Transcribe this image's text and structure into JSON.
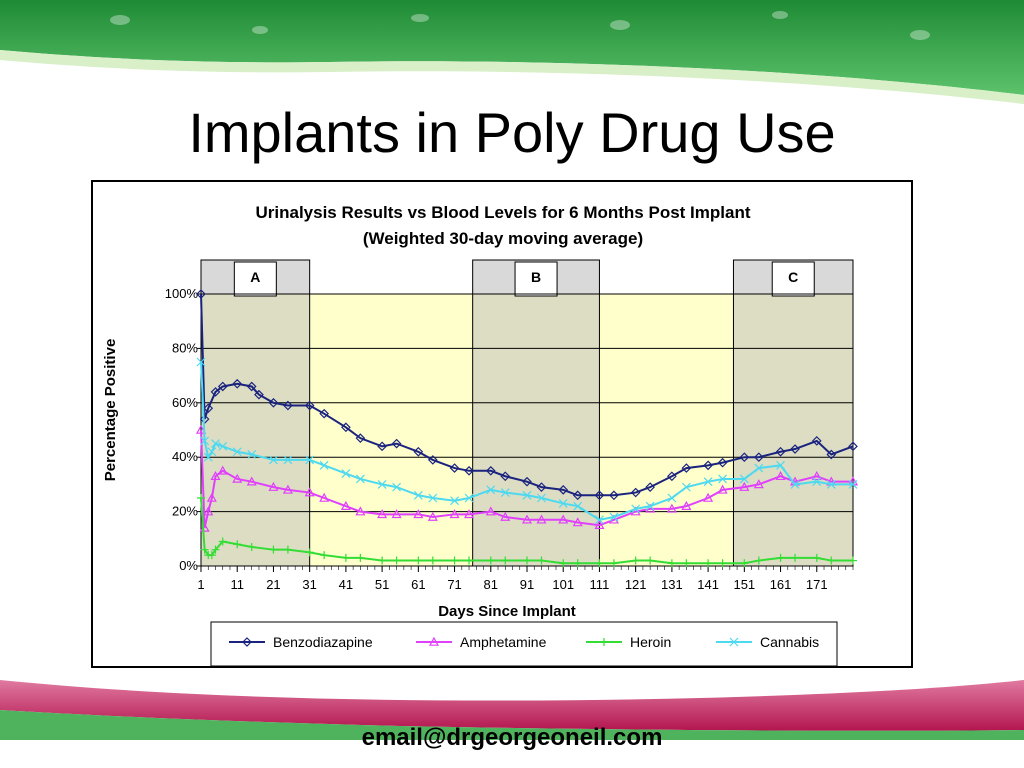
{
  "slide": {
    "title": "Implants in Poly Drug Use",
    "footer": "email@drgeorgeoneil.com",
    "colors": {
      "banner_green": "#2e9a3f",
      "banner_pink": "#c2185b"
    }
  },
  "chart_data": {
    "type": "line",
    "title_line1": "Urinalysis Results vs Blood Levels for 6 Months Post Implant",
    "title_line2": "(Weighted 30-day moving average)",
    "xlabel": "Days Since Implant",
    "ylabel": "Percentage Positive",
    "xlim": [
      1,
      181
    ],
    "ylim": [
      0,
      100
    ],
    "x_ticks": [
      "1",
      "11",
      "21",
      "31",
      "41",
      "51",
      "61",
      "71",
      "81",
      "91",
      "101",
      "111",
      "121",
      "131",
      "141",
      "151",
      "161",
      "171"
    ],
    "y_ticks": [
      "0%",
      "20%",
      "40%",
      "60%",
      "80%",
      "100%"
    ],
    "grid": true,
    "legend_position": "bottom",
    "regions": [
      {
        "label": "A",
        "start": 1,
        "end": 31,
        "color": "#d9d9d9"
      },
      {
        "label": "B",
        "start": 76,
        "end": 111,
        "color": "#d9d9d9"
      },
      {
        "label": "C",
        "start": 148,
        "end": 181,
        "color": "#d9d9d9"
      }
    ],
    "plot_background": "#ffffcc",
    "shade_color": "#ddddc4",
    "series": [
      {
        "name": "Benzodiazapine",
        "color": "#1a237e",
        "marker": "diamond",
        "x": [
          1,
          2,
          3,
          5,
          7,
          11,
          15,
          17,
          21,
          25,
          31,
          35,
          41,
          45,
          51,
          55,
          61,
          65,
          71,
          75,
          81,
          85,
          91,
          95,
          101,
          105,
          111,
          115,
          121,
          125,
          131,
          135,
          141,
          145,
          151,
          155,
          161,
          165,
          171,
          175,
          181
        ],
        "y": [
          100,
          54,
          58,
          64,
          66,
          67,
          66,
          63,
          60,
          59,
          59,
          56,
          51,
          47,
          44,
          45,
          42,
          39,
          36,
          35,
          35,
          33,
          31,
          29,
          28,
          26,
          26,
          26,
          27,
          29,
          33,
          36,
          37,
          38,
          40,
          40,
          42,
          43,
          46,
          41,
          44
        ]
      },
      {
        "name": "Amphetamine",
        "color": "#e040fb",
        "marker": "triangle",
        "x": [
          1,
          2,
          3,
          4,
          5,
          7,
          11,
          15,
          21,
          25,
          31,
          35,
          41,
          45,
          51,
          55,
          61,
          65,
          71,
          75,
          81,
          85,
          91,
          95,
          101,
          105,
          111,
          115,
          121,
          125,
          131,
          135,
          141,
          145,
          151,
          155,
          161,
          165,
          171,
          175,
          181
        ],
        "y": [
          50,
          14,
          20,
          25,
          33,
          35,
          32,
          31,
          29,
          28,
          27,
          25,
          22,
          20,
          19,
          19,
          19,
          18,
          19,
          19,
          20,
          18,
          17,
          17,
          17,
          16,
          15,
          17,
          20,
          21,
          21,
          22,
          25,
          28,
          29,
          30,
          33,
          31,
          33,
          31,
          31
        ]
      },
      {
        "name": "Heroin",
        "color": "#33dd33",
        "marker": "plus",
        "x": [
          1,
          2,
          3,
          4,
          5,
          7,
          11,
          15,
          21,
          25,
          31,
          35,
          41,
          45,
          51,
          55,
          61,
          65,
          71,
          75,
          81,
          85,
          91,
          95,
          101,
          105,
          111,
          115,
          121,
          125,
          131,
          135,
          141,
          145,
          151,
          155,
          161,
          165,
          171,
          175,
          181
        ],
        "y": [
          25,
          6,
          4,
          4,
          6,
          9,
          8,
          7,
          6,
          6,
          5,
          4,
          3,
          3,
          2,
          2,
          2,
          2,
          2,
          2,
          2,
          2,
          2,
          2,
          1,
          1,
          1,
          1,
          2,
          2,
          1,
          1,
          1,
          1,
          1,
          2,
          3,
          3,
          3,
          2,
          2
        ]
      },
      {
        "name": "Cannabis",
        "color": "#4dd9f0",
        "marker": "x",
        "x": [
          1,
          2,
          3,
          4,
          5,
          7,
          11,
          15,
          21,
          25,
          31,
          35,
          41,
          45,
          51,
          55,
          61,
          65,
          71,
          75,
          81,
          85,
          91,
          95,
          101,
          105,
          111,
          115,
          121,
          125,
          131,
          135,
          141,
          145,
          151,
          155,
          161,
          165,
          171,
          175,
          181
        ],
        "y": [
          75,
          46,
          40,
          42,
          45,
          44,
          42,
          41,
          39,
          39,
          39,
          37,
          34,
          32,
          30,
          29,
          26,
          25,
          24,
          25,
          28,
          27,
          26,
          25,
          23,
          22,
          17,
          18,
          21,
          22,
          25,
          29,
          31,
          32,
          32,
          36,
          37,
          30,
          31,
          30,
          30
        ]
      }
    ]
  }
}
